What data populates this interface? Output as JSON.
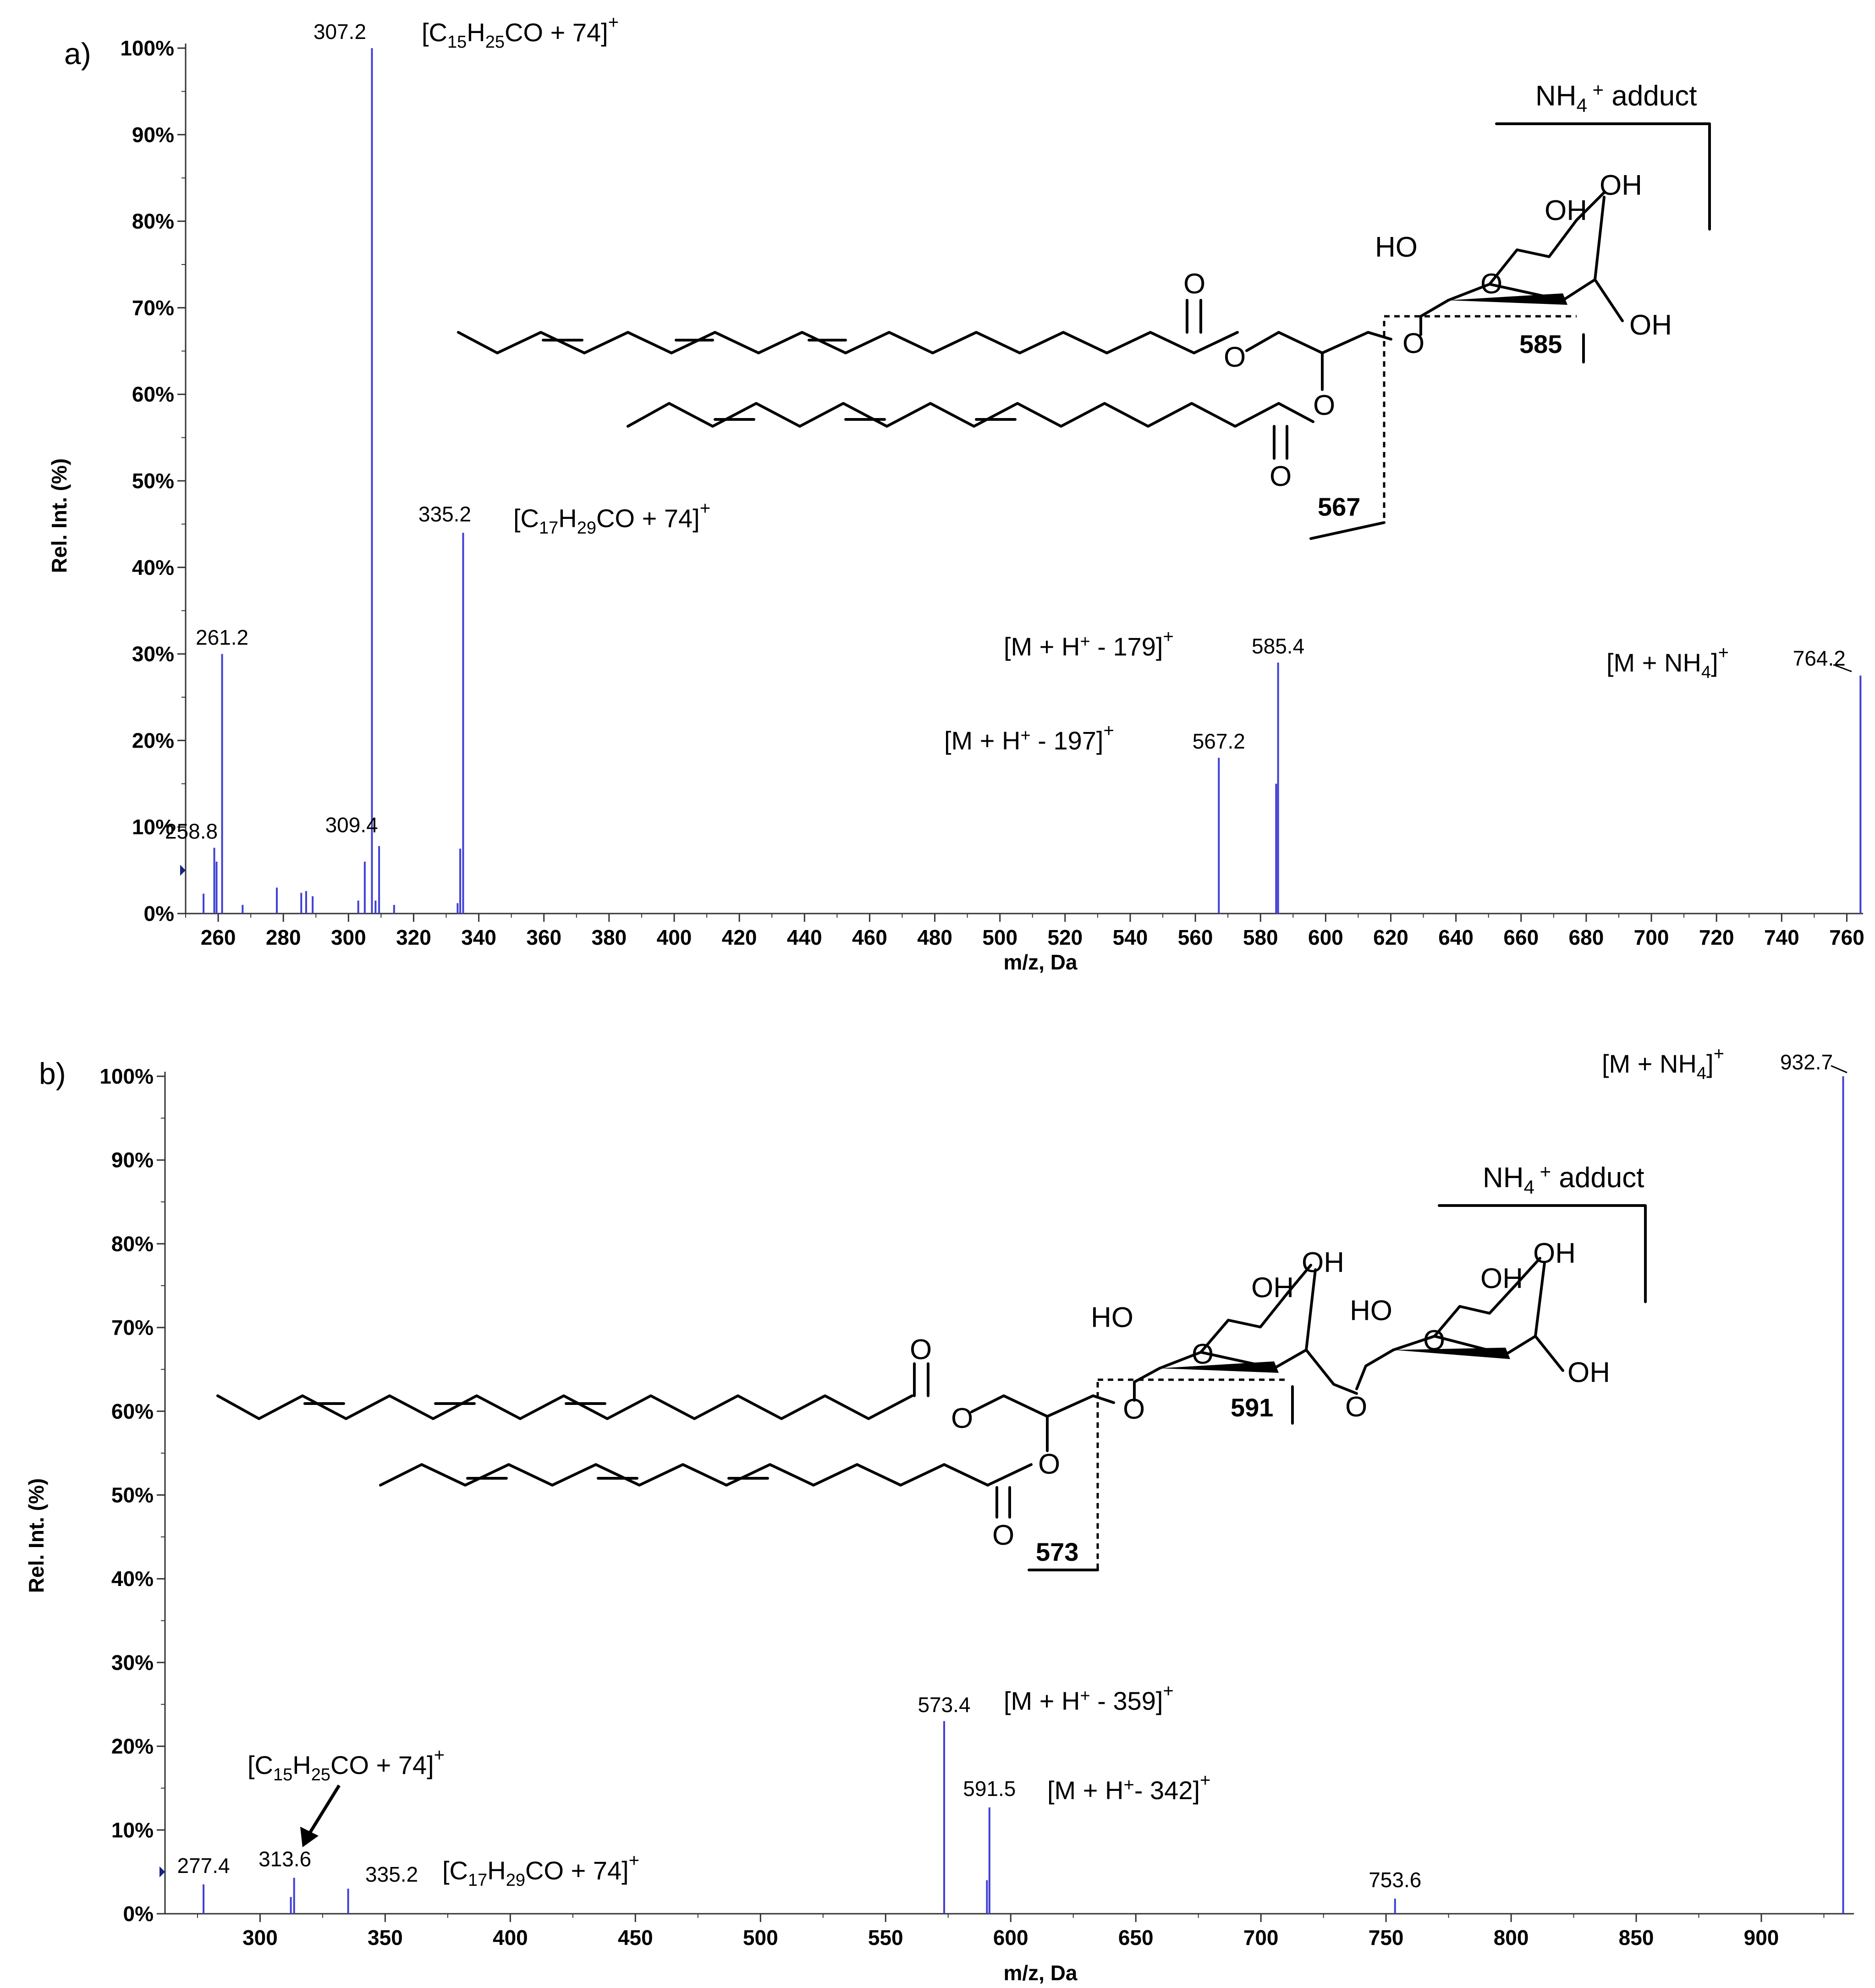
{
  "chart_data": [
    {
      "type": "bar",
      "panel": "a)",
      "xlabel": "m/z, Da",
      "ylabel": "Rel. Int. (%)",
      "xlim": [
        250,
        765
      ],
      "ylim": [
        0,
        100
      ],
      "x_ticks": [
        260,
        280,
        300,
        320,
        340,
        360,
        380,
        400,
        420,
        440,
        460,
        480,
        500,
        520,
        540,
        560,
        580,
        600,
        620,
        640,
        660,
        680,
        700,
        720,
        740,
        760
      ],
      "y_ticks": [
        "0%",
        "10%",
        "20%",
        "30%",
        "40%",
        "50%",
        "60%",
        "70%",
        "80%",
        "90%",
        "100%"
      ],
      "peaks": [
        {
          "mz": 255.5,
          "intensity": 2.3
        },
        {
          "mz": 258.8,
          "intensity": 7.6
        },
        {
          "mz": 259.5,
          "intensity": 6
        },
        {
          "mz": 261.2,
          "intensity": 30
        },
        {
          "mz": 267.5,
          "intensity": 1
        },
        {
          "mz": 278,
          "intensity": 3
        },
        {
          "mz": 285.5,
          "intensity": 2.4
        },
        {
          "mz": 287,
          "intensity": 2.6
        },
        {
          "mz": 289,
          "intensity": 2
        },
        {
          "mz": 303,
          "intensity": 1.5
        },
        {
          "mz": 305,
          "intensity": 6
        },
        {
          "mz": 307.2,
          "intensity": 100
        },
        {
          "mz": 308.3,
          "intensity": 1.5
        },
        {
          "mz": 309.4,
          "intensity": 7.8
        },
        {
          "mz": 314,
          "intensity": 1
        },
        {
          "mz": 333.5,
          "intensity": 1.2
        },
        {
          "mz": 334.3,
          "intensity": 7.5
        },
        {
          "mz": 335.2,
          "intensity": 44
        },
        {
          "mz": 567.2,
          "intensity": 18
        },
        {
          "mz": 584.8,
          "intensity": 15
        },
        {
          "mz": 585.4,
          "intensity": 29
        },
        {
          "mz": 764.2,
          "intensity": 27.5
        }
      ],
      "labels": [
        {
          "text": "258.8",
          "mz": 258.8,
          "y": 7.6
        },
        {
          "text": "261.2",
          "mz": 261.2,
          "y": 30
        },
        {
          "text": "307.2",
          "mz": 307.2,
          "y": 100
        },
        {
          "text": "309.4",
          "mz": 309.4,
          "y": 7.8
        },
        {
          "text": "335.2",
          "mz": 335.2,
          "y": 44
        },
        {
          "text": "567.2",
          "mz": 567.2,
          "y": 18
        },
        {
          "text": "585.4",
          "mz": 585.4,
          "y": 29
        },
        {
          "text": "764.2",
          "mz": 764.2,
          "y": 27.5
        }
      ],
      "annotations": {
        "ion_307": "[C15H25CO + 74]+",
        "ion_335": "[C17H29CO + 74]+",
        "ion_585": "[M + H+ - 179]+",
        "ion_567": "[M + H+ - 197]+",
        "ion_764": "[M + NH4]+"
      },
      "structure": {
        "adduct_label": "NH4+ adduct",
        "atom_labels": [
          "OH",
          "OH",
          "HO",
          "O",
          "OH",
          "O",
          "O",
          "O",
          "O",
          "O"
        ],
        "fragment_labels": [
          "585",
          "567"
        ]
      }
    },
    {
      "type": "bar",
      "panel": "b)",
      "xlabel": "m/z, Da",
      "ylabel": "Rel. Int. (%)",
      "xlim": [
        262,
        937
      ],
      "ylim": [
        0,
        100
      ],
      "x_ticks": [
        300,
        350,
        400,
        450,
        500,
        550,
        600,
        650,
        700,
        750,
        800,
        850,
        900
      ],
      "y_ticks": [
        "0%",
        "10%",
        "20%",
        "30%",
        "40%",
        "50%",
        "60%",
        "70%",
        "80%",
        "90%",
        "100%"
      ],
      "peaks": [
        {
          "mz": 277.4,
          "intensity": 3.5
        },
        {
          "mz": 312.3,
          "intensity": 2
        },
        {
          "mz": 313.6,
          "intensity": 4.3
        },
        {
          "mz": 335.2,
          "intensity": 3
        },
        {
          "mz": 573.4,
          "intensity": 23
        },
        {
          "mz": 590.5,
          "intensity": 4
        },
        {
          "mz": 591.5,
          "intensity": 12.7
        },
        {
          "mz": 753.6,
          "intensity": 1.8
        },
        {
          "mz": 932.7,
          "intensity": 100
        }
      ],
      "labels": [
        {
          "text": "277.4",
          "mz": 277.4,
          "y": 3.5
        },
        {
          "text": "313.6",
          "mz": 313.6,
          "y": 4.3
        },
        {
          "text": "335.2",
          "mz": 335.2,
          "y": 3
        },
        {
          "text": "573.4",
          "mz": 573.4,
          "y": 23
        },
        {
          "text": "591.5",
          "mz": 591.5,
          "y": 12.7
        },
        {
          "text": "753.6",
          "mz": 753.6,
          "y": 1.8
        },
        {
          "text": "932.7",
          "mz": 932.7,
          "y": 100
        }
      ],
      "annotations": {
        "ion_313": "[C15H25CO + 74]+",
        "ion_335": "[C17H29CO + 74]+",
        "ion_573": "[M + H+ - 359]+",
        "ion_591": "[M + H+- 342]+",
        "ion_932": "[M + NH4]+"
      },
      "structure": {
        "adduct_label": "NH4+ adduct",
        "atom_labels": [
          "OH",
          "OH",
          "HO",
          "O",
          "OH",
          "OH",
          "HO",
          "O",
          "OH",
          "O",
          "O",
          "O",
          "O",
          "O",
          "O"
        ],
        "fragment_labels": [
          "591",
          "573"
        ]
      }
    }
  ]
}
